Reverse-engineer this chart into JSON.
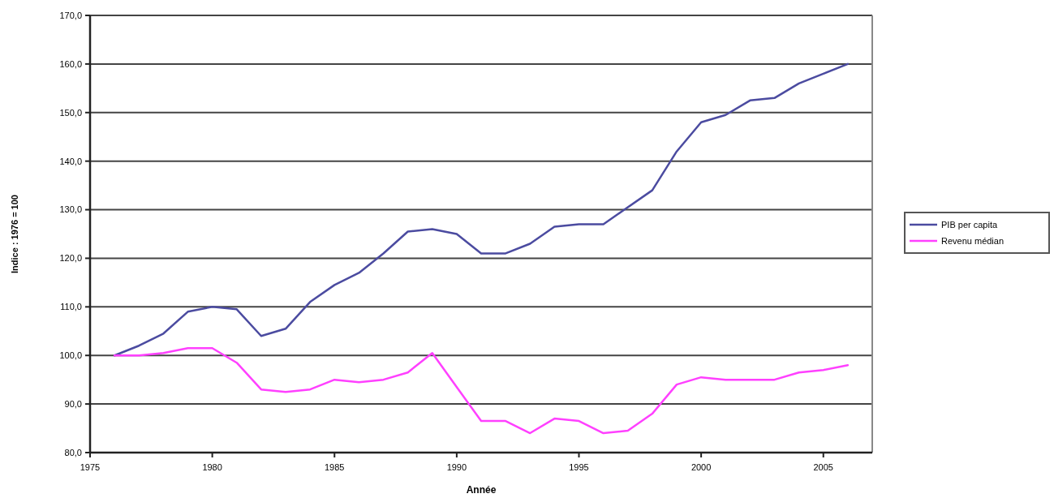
{
  "chart_data": {
    "type": "line",
    "xlabel": "Année",
    "ylabel": "Indice : 1976 = 100",
    "x": [
      1976,
      1977,
      1978,
      1979,
      1980,
      1981,
      1982,
      1983,
      1984,
      1985,
      1986,
      1987,
      1988,
      1989,
      1990,
      1991,
      1992,
      1993,
      1994,
      1995,
      1996,
      1997,
      1998,
      1999,
      2000,
      2001,
      2002,
      2003,
      2004,
      2005,
      2006
    ],
    "series": [
      {
        "name": "PIB per capita",
        "color": "#4b4ba0",
        "values": [
          100,
          102,
          104.5,
          109,
          110,
          109.5,
          104,
          105.5,
          111,
          114.5,
          117,
          121,
          125.5,
          126,
          125,
          121,
          121,
          123,
          126.5,
          127,
          127,
          130.5,
          134,
          142,
          148,
          149.5,
          152.5,
          153,
          156,
          158,
          160
        ]
      },
      {
        "name": "Revenu médian",
        "color": "#ff40ff",
        "values": [
          100,
          100,
          100.5,
          101.5,
          101.5,
          98.5,
          93,
          92.5,
          93,
          95,
          94.5,
          95,
          96.5,
          100.5,
          93.5,
          86.5,
          86.5,
          84,
          87,
          86.5,
          84,
          84.5,
          88,
          94,
          95.5,
          95,
          95,
          95,
          96.5,
          97,
          98
        ]
      }
    ],
    "xlim": [
      1975,
      2007
    ],
    "xticks": [
      1975,
      1980,
      1985,
      1990,
      1995,
      2000,
      2005
    ],
    "ylim": [
      80,
      170
    ],
    "yticks": [
      {
        "value": 80,
        "label": "80,0"
      },
      {
        "value": 90,
        "label": "90,0"
      },
      {
        "value": 100,
        "label": "100,0"
      },
      {
        "value": 110,
        "label": "110,0"
      },
      {
        "value": 120,
        "label": "120,0"
      },
      {
        "value": 130,
        "label": "130,0"
      },
      {
        "value": 140,
        "label": "140,0"
      },
      {
        "value": 150,
        "label": "150,0"
      },
      {
        "value": 160,
        "label": "160,0"
      },
      {
        "value": 170,
        "label": "170,0"
      }
    ],
    "grid": "y",
    "legend": "right",
    "line_style": "solid",
    "marker": "none"
  }
}
